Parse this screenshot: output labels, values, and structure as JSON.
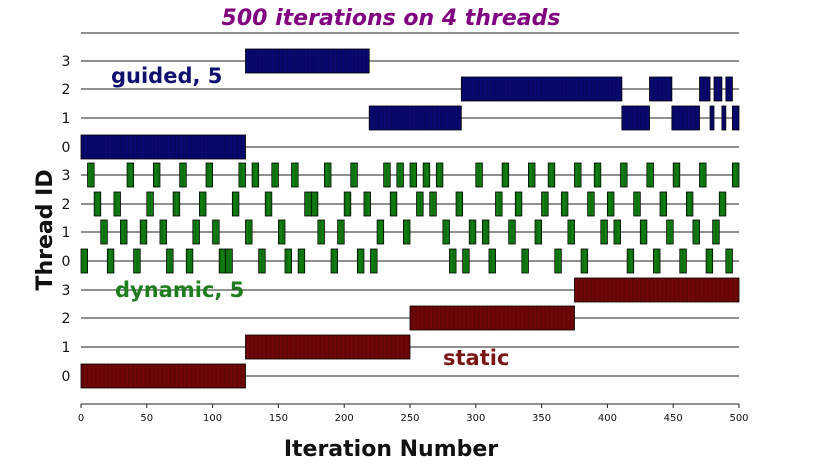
{
  "chart_data": {
    "type": "bar",
    "subtype": "gantt",
    "title": "500 iterations on 4 threads",
    "xlabel": "Iteration Number",
    "ylabel": "Thread ID",
    "xlim": [
      0,
      500
    ],
    "x_ticks": [
      0,
      50,
      100,
      150,
      200,
      250,
      300,
      350,
      400,
      450,
      500
    ],
    "thread_ids": [
      "0",
      "1",
      "2",
      "3"
    ],
    "grid": "horizontal",
    "colors": {
      "title": "#800080",
      "guided": "#0a0a7c",
      "dynamic": "#138a13",
      "static": "#7c0808",
      "guided_label": "#10106e",
      "dynamic_label": "#1e7d1e",
      "static_label": "#7a1515"
    },
    "series": [
      {
        "name": "guided, 5",
        "key": "guided",
        "chunk": 5,
        "intervals": {
          "3": [
            [
              125,
              219
            ]
          ],
          "2": [
            [
              289,
              411
            ],
            [
              432,
              449
            ],
            [
              470,
              478
            ],
            [
              481,
              487
            ],
            [
              490,
              495
            ]
          ],
          "1": [
            [
              219,
              289
            ],
            [
              411,
              432
            ],
            [
              449,
              470
            ],
            [
              478,
              481
            ],
            [
              487,
              490
            ],
            [
              495,
              500
            ]
          ],
          "0": [
            [
              0,
              125
            ]
          ]
        }
      },
      {
        "name": "dynamic, 5",
        "key": "dynamic",
        "chunk": 5,
        "starts": {
          "3": [
            5,
            35,
            55,
            75,
            95,
            120,
            130,
            145,
            160,
            185,
            205,
            230,
            240,
            250,
            260,
            270,
            300,
            320,
            340,
            355,
            375,
            390,
            410,
            430,
            450,
            470,
            495
          ],
          "2": [
            10,
            25,
            50,
            70,
            90,
            115,
            140,
            170,
            175,
            200,
            215,
            235,
            255,
            265,
            285,
            315,
            330,
            350,
            365,
            385,
            400,
            420,
            440,
            460,
            485
          ],
          "1": [
            15,
            30,
            45,
            60,
            85,
            100,
            125,
            150,
            180,
            195,
            225,
            245,
            275,
            295,
            305,
            325,
            345,
            370,
            395,
            405,
            425,
            445,
            465,
            480
          ],
          "0": [
            0,
            20,
            40,
            65,
            80,
            105,
            110,
            135,
            155,
            165,
            190,
            210,
            220,
            280,
            290,
            310,
            335,
            360,
            380,
            415,
            435,
            455,
            475,
            490
          ]
        }
      },
      {
        "name": "static",
        "key": "static",
        "intervals": {
          "3": [
            [
              375,
              500
            ]
          ],
          "2": [
            [
              250,
              375
            ]
          ],
          "1": [
            [
              125,
              250
            ]
          ],
          "0": [
            [
              0,
              125
            ]
          ]
        }
      }
    ]
  }
}
